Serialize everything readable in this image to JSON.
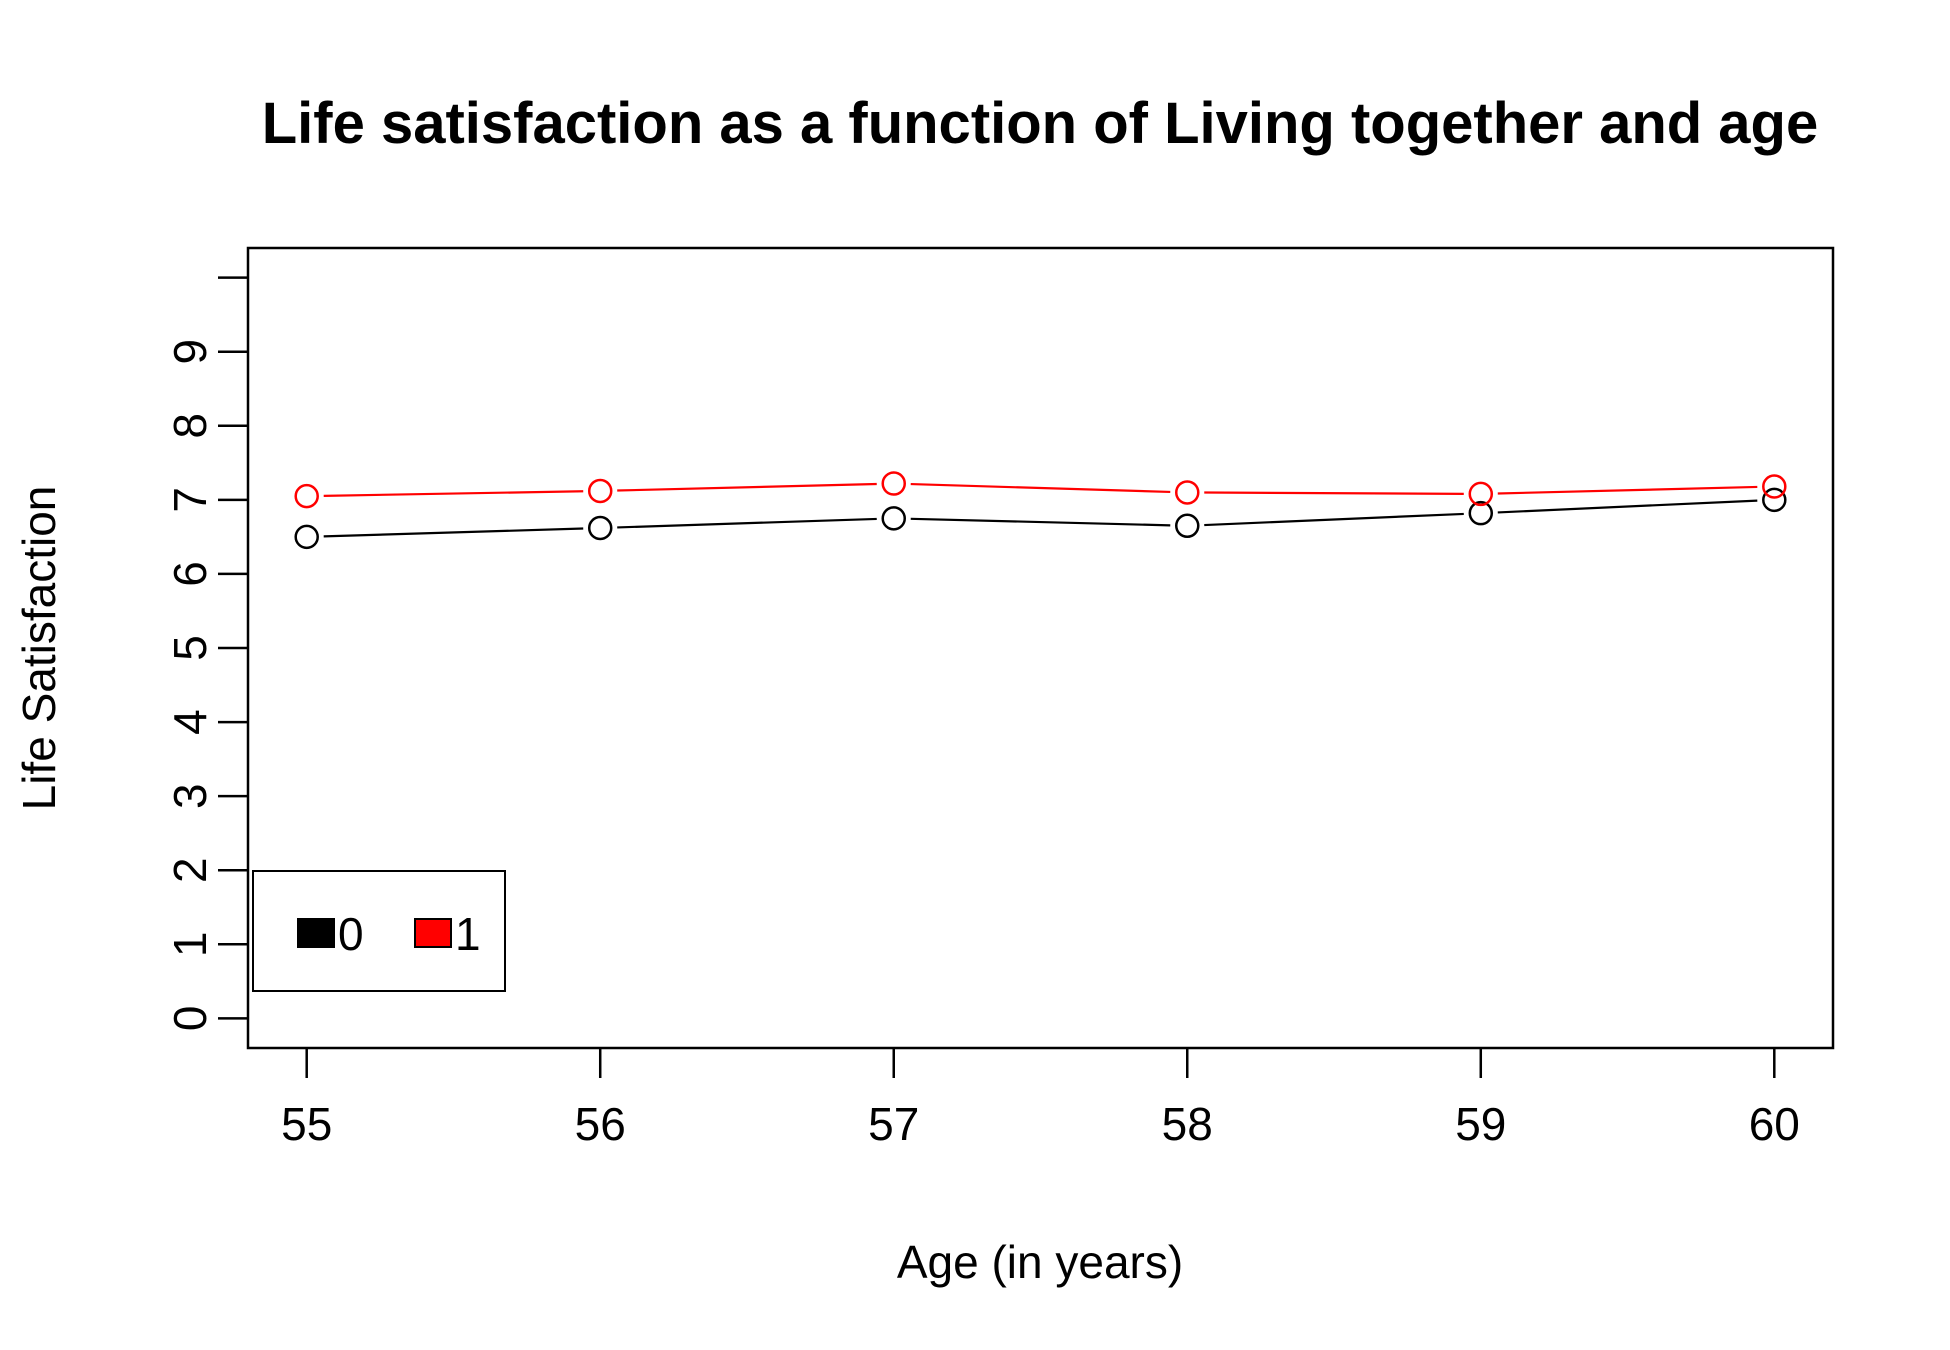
{
  "chart_data": {
    "type": "line",
    "title": "Life satisfaction as a function of Living together and age",
    "xlabel": "Age (in years)",
    "ylabel": "Life Satisfaction",
    "x": [
      55,
      56,
      57,
      58,
      59,
      60
    ],
    "xlim": [
      54.8,
      60.2
    ],
    "ylim": [
      -0.4,
      10.4
    ],
    "yticks": [
      0,
      1,
      2,
      3,
      4,
      5,
      6,
      7,
      8,
      9,
      10
    ],
    "yticklabels": [
      "0",
      "1",
      "2",
      "3",
      "4",
      "5",
      "6",
      "7",
      "8",
      "9",
      ""
    ],
    "grid": false,
    "marker": "open-circle",
    "series": [
      {
        "name": "0",
        "color": "#000000",
        "values": [
          6.5,
          6.62,
          6.75,
          6.65,
          6.82,
          7.0
        ]
      },
      {
        "name": "1",
        "color": "#ff0000",
        "values": [
          7.05,
          7.12,
          7.22,
          7.1,
          7.08,
          7.18
        ]
      }
    ],
    "legend": {
      "placement": "bottom-left",
      "entries": [
        {
          "label": "0",
          "color": "#000000"
        },
        {
          "label": "1",
          "color": "#ff0000"
        }
      ]
    }
  }
}
